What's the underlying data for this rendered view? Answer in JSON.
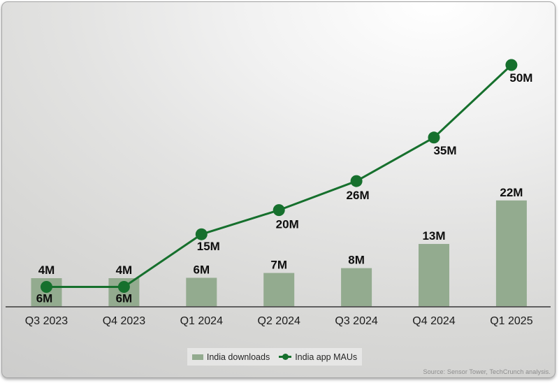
{
  "legend": {
    "items": [
      {
        "label": "India downloads",
        "marker": "bar-swatch"
      },
      {
        "label": "India app MAUs",
        "marker": "line-dot"
      }
    ]
  },
  "source_note": "Source: Sensor Tower, TechCrunch analysis.",
  "colors": {
    "bar": "#93ab8f",
    "line": "#16702d",
    "axis": "#4f4f4f",
    "value_label": "#0e0e0e",
    "category_label": "#1b1b1b",
    "legend_text": "#262626",
    "legend_bg": "rgba(255,255,255,0.42)",
    "source_text": "#8c8c8c"
  },
  "chart_data": {
    "type": "combo",
    "title": "",
    "categories": [
      "Q3 2023",
      "Q4 2023",
      "Q1 2024",
      "Q2 2024",
      "Q3 2024",
      "Q4 2024",
      "Q1 2025"
    ],
    "series": [
      {
        "name": "India downloads",
        "mark": "bar",
        "unit": "millions",
        "values": [
          4,
          4,
          6,
          7,
          8,
          13,
          22
        ],
        "labels": [
          "4M",
          "4M",
          "6M",
          "7M",
          "8M",
          "13M",
          "22M"
        ]
      },
      {
        "name": "India app MAUs",
        "mark": "line",
        "unit": "millions",
        "values": [
          6,
          6,
          15,
          20,
          26,
          35,
          50
        ],
        "labels": [
          "6M",
          "6M",
          "15M",
          "20M",
          "26M",
          "35M",
          "50M"
        ]
      }
    ],
    "xlabel": "",
    "ylabel": "",
    "ylim": [
      0,
      52
    ],
    "grid": false,
    "legend_position": "bottom-center",
    "value_labels_shown": true
  }
}
